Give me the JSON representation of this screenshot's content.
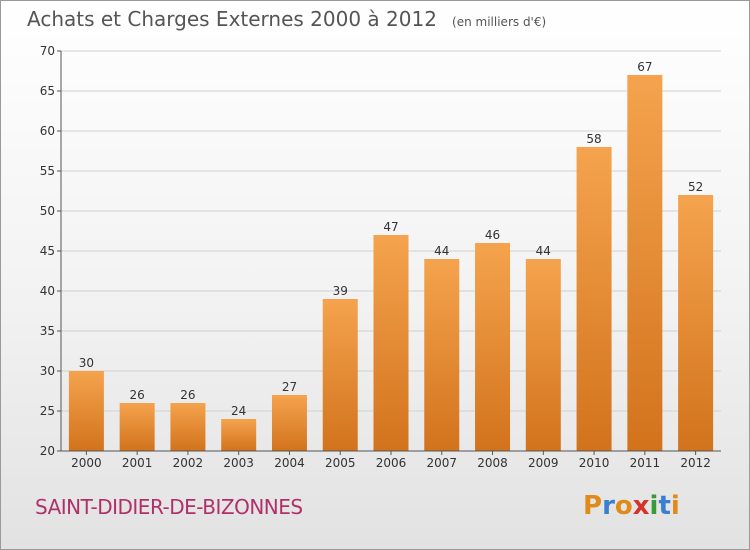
{
  "header": {
    "title": "Achats et Charges Externes 2000 à 2012",
    "subtitle": "(en milliers d'€)"
  },
  "footer": {
    "commune": "SAINT-DIDIER-DE-BIZONNES",
    "logo_text": "Proxiti",
    "logo_colors": [
      "#e08a1a",
      "#3a7fd0",
      "#e08a1a",
      "#d4322a",
      "#3a9a3a",
      "#3a7fd0",
      "#e08a1a"
    ]
  },
  "colors": {
    "bar_top": "#f5a34e",
    "bar_bottom": "#d2731c",
    "axis": "#555555",
    "grid": "#d0d0d0"
  },
  "chart_data": {
    "type": "bar",
    "title": "Achats et Charges Externes 2000 à 2012",
    "subtitle": "(en milliers d'€)",
    "xlabel": "",
    "ylabel": "",
    "ylim": [
      20,
      70
    ],
    "yticks": [
      20,
      25,
      30,
      35,
      40,
      45,
      50,
      55,
      60,
      65,
      70
    ],
    "grid": true,
    "categories": [
      "2000",
      "2001",
      "2002",
      "2003",
      "2004",
      "2005",
      "2006",
      "2007",
      "2008",
      "2009",
      "2010",
      "2011",
      "2012"
    ],
    "values": [
      30,
      26,
      26,
      24,
      27,
      39,
      47,
      44,
      46,
      44,
      58,
      67,
      52
    ]
  }
}
